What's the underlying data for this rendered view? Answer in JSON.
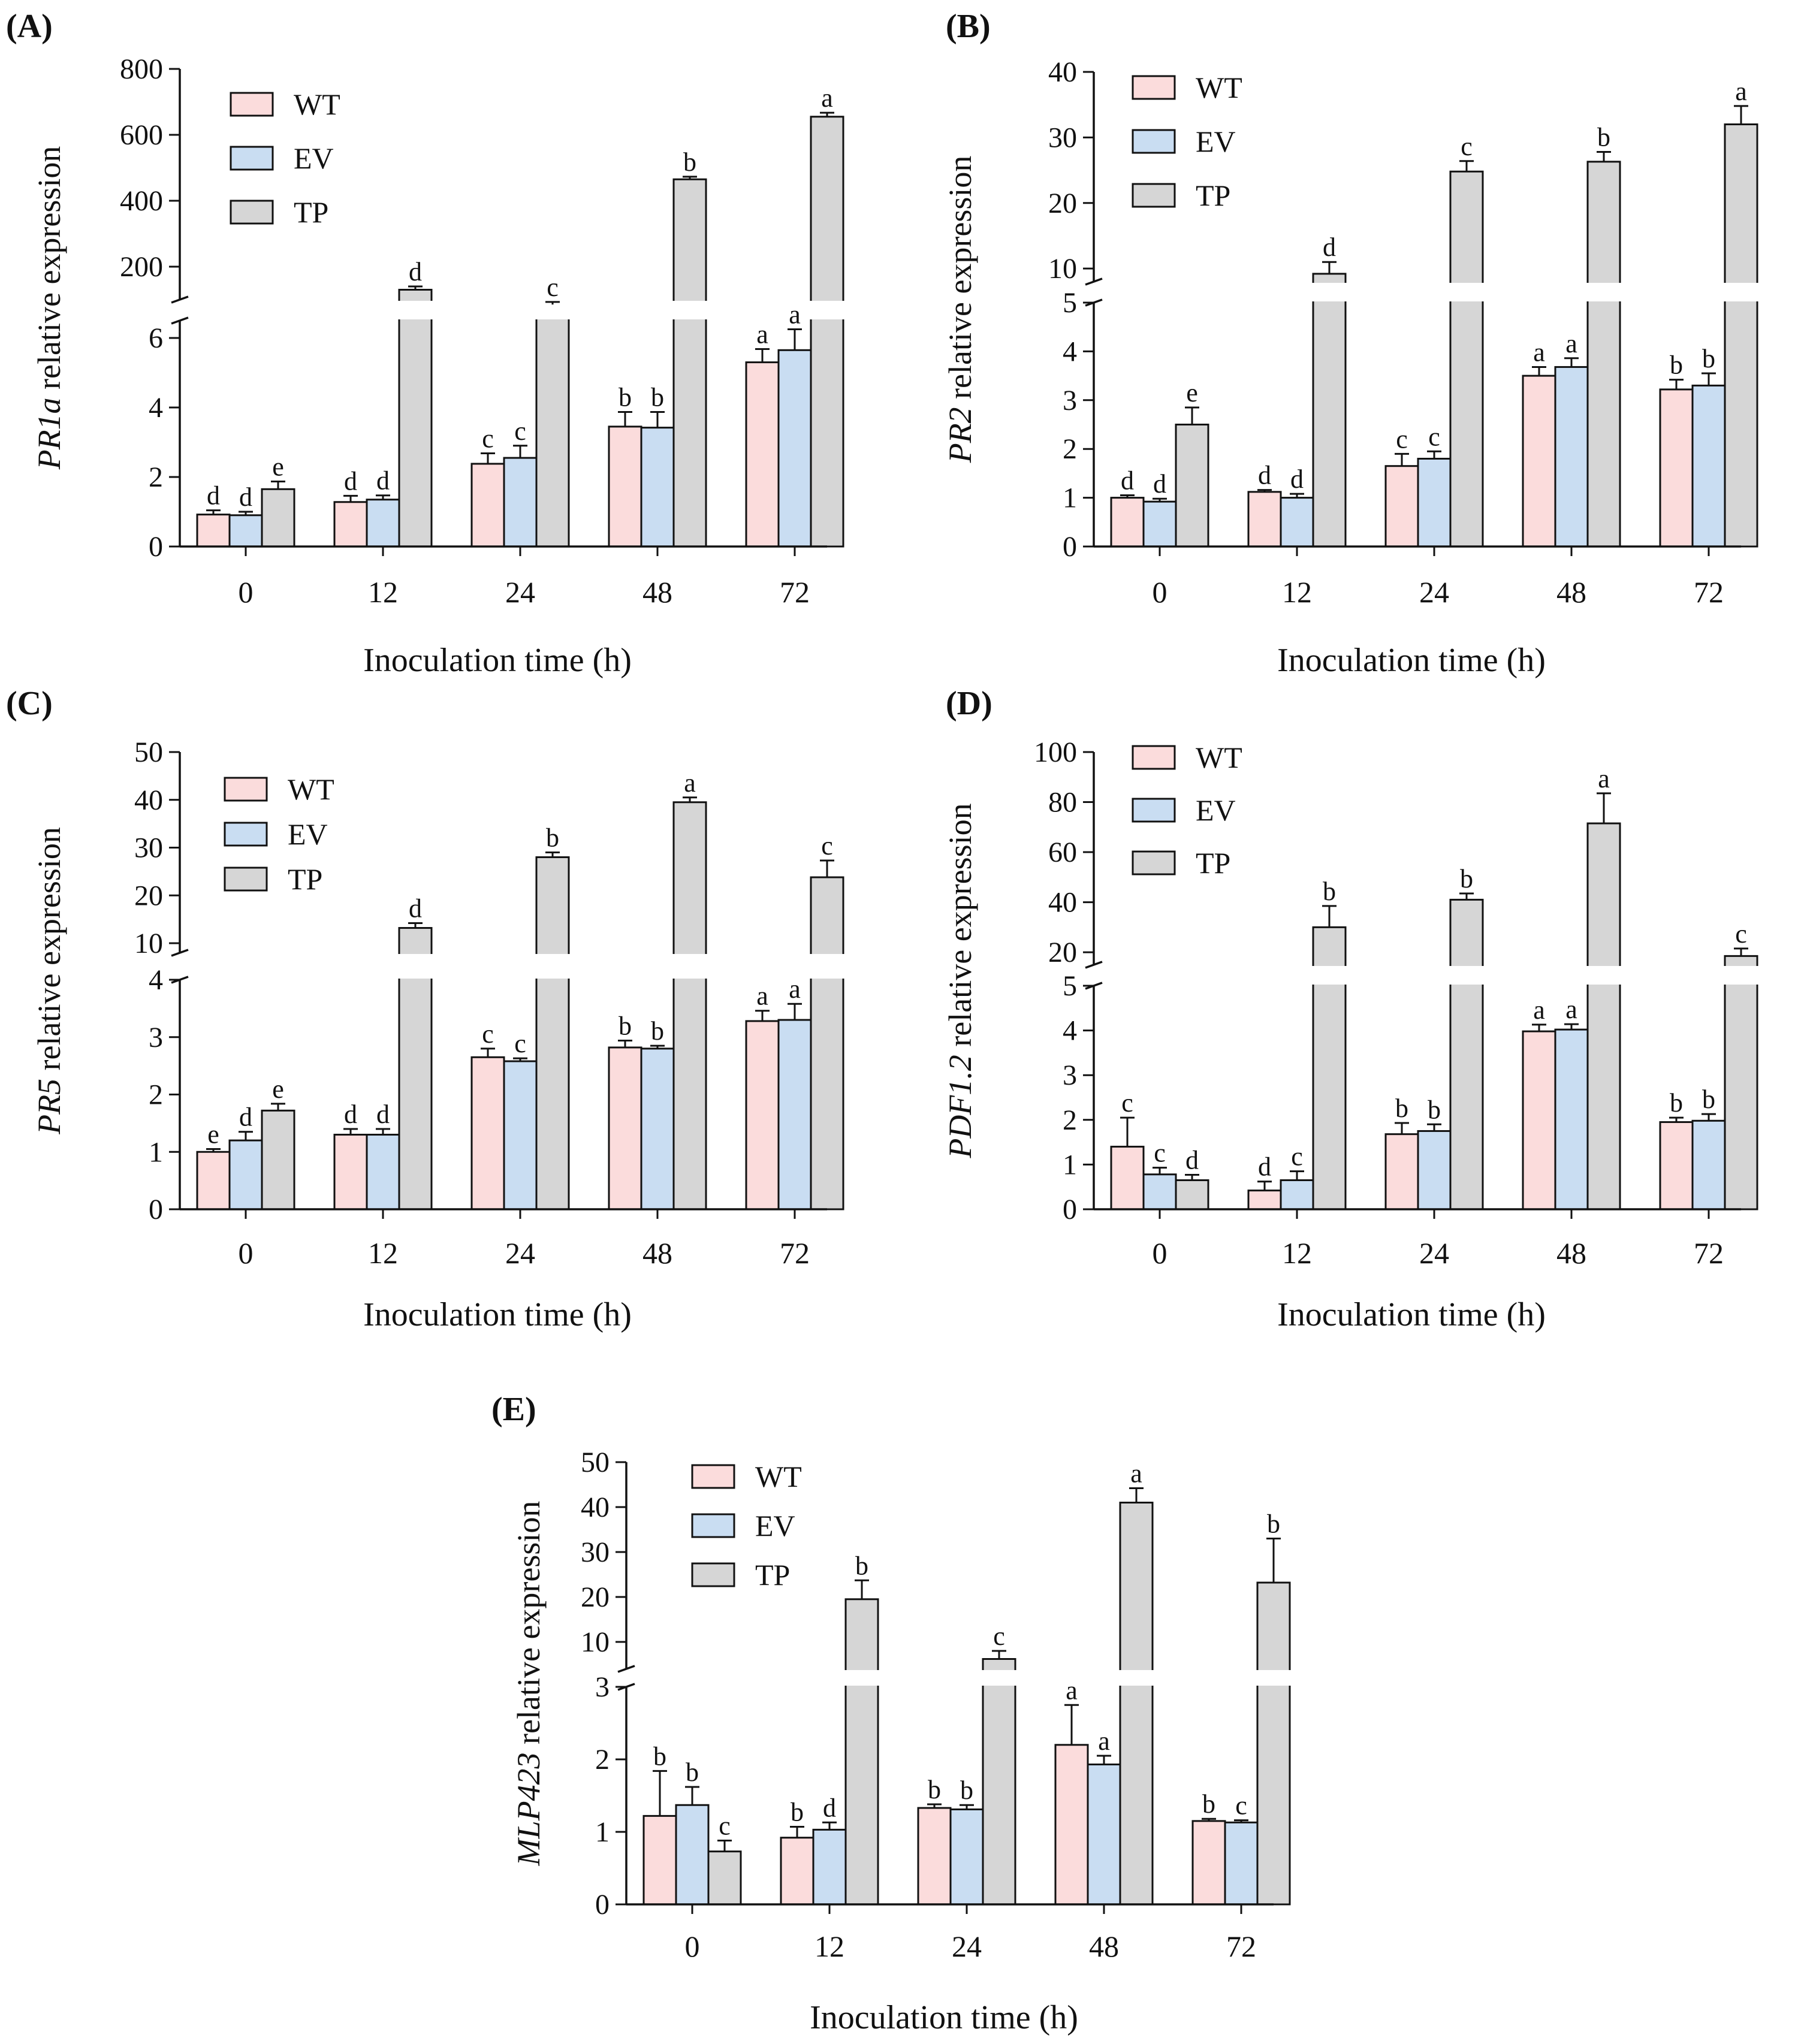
{
  "colors": {
    "WT": "#fbdcdc",
    "EV": "#c9ddf2",
    "TP": "#d6d6d6",
    "stroke": "#111111"
  },
  "chart_data": [
    {
      "type": "bar",
      "panel": "(A)",
      "ylabel_italic": "PR1a",
      "ylabel_rest": " relative expression",
      "xlabel": "Inoculation time (h)",
      "categories": [
        "0",
        "12",
        "24",
        "48",
        "72"
      ],
      "legend": [
        "WT",
        "EV",
        "TP"
      ],
      "lower": {
        "ylim": [
          0,
          6.5
        ],
        "ticks": [
          0,
          2,
          4,
          6
        ]
      },
      "upper": {
        "ylim": [
          100,
          800
        ],
        "ticks": [
          200,
          400,
          600,
          800
        ]
      },
      "series": [
        {
          "name": "WT",
          "values": [
            0.92,
            1.28,
            2.38,
            3.45,
            5.3
          ],
          "errors": [
            0.12,
            0.18,
            0.3,
            0.42,
            0.38
          ],
          "letters": [
            "d",
            "d",
            "c",
            "b",
            "a"
          ]
        },
        {
          "name": "EV",
          "values": [
            0.9,
            1.35,
            2.55,
            3.42,
            5.65
          ],
          "errors": [
            0.1,
            0.12,
            0.35,
            0.45,
            0.6
          ],
          "letters": [
            "d",
            "d",
            "c",
            "b",
            "a"
          ]
        },
        {
          "name": "TP",
          "values": [
            1.65,
            130,
            85,
            465,
            655
          ],
          "errors": [
            0.22,
            10,
            8,
            8,
            12
          ],
          "letters": [
            "e",
            "d",
            "c",
            "b",
            "a"
          ]
        }
      ]
    },
    {
      "type": "bar",
      "panel": "(B)",
      "ylabel_italic": "PR2",
      "ylabel_rest": " relative expression",
      "xlabel": "Inoculation time (h)",
      "categories": [
        "0",
        "12",
        "24",
        "48",
        "72"
      ],
      "legend": [
        "WT",
        "EV",
        "TP"
      ],
      "lower": {
        "ylim": [
          0,
          5
        ],
        "ticks": [
          0,
          1,
          2,
          3,
          4,
          5
        ]
      },
      "upper": {
        "ylim": [
          8,
          40
        ],
        "ticks": [
          10,
          20,
          30,
          40
        ]
      },
      "series": [
        {
          "name": "WT",
          "values": [
            1.0,
            1.12,
            1.65,
            3.5,
            3.22
          ],
          "errors": [
            0.05,
            0.04,
            0.25,
            0.18,
            0.2
          ],
          "letters": [
            "d",
            "d",
            "c",
            "a",
            "b"
          ]
        },
        {
          "name": "EV",
          "values": [
            0.92,
            1.0,
            1.8,
            3.68,
            3.3
          ],
          "errors": [
            0.06,
            0.08,
            0.15,
            0.18,
            0.25
          ],
          "letters": [
            "d",
            "d",
            "c",
            "a",
            "b"
          ]
        },
        {
          "name": "TP",
          "values": [
            2.5,
            9.2,
            24.8,
            26.3,
            32
          ],
          "errors": [
            0.35,
            1.8,
            1.6,
            1.5,
            2.8
          ],
          "letters": [
            "e",
            "d",
            "c",
            "b",
            "a"
          ]
        }
      ]
    },
    {
      "type": "bar",
      "panel": "(C)",
      "ylabel_italic": "PR5",
      "ylabel_rest": " relative expression",
      "xlabel": "Inoculation time (h)",
      "categories": [
        "0",
        "12",
        "24",
        "48",
        "72"
      ],
      "legend": [
        "WT",
        "EV",
        "TP"
      ],
      "lower": {
        "ylim": [
          0,
          4
        ],
        "ticks": [
          0,
          1,
          2,
          3,
          4
        ]
      },
      "upper": {
        "ylim": [
          8,
          50
        ],
        "ticks": [
          10,
          20,
          30,
          40,
          50
        ]
      },
      "series": [
        {
          "name": "WT",
          "values": [
            1.0,
            1.3,
            2.65,
            2.82,
            3.28
          ],
          "errors": [
            0.05,
            0.1,
            0.15,
            0.12,
            0.18
          ],
          "letters": [
            "e",
            "d",
            "c",
            "b",
            "a"
          ]
        },
        {
          "name": "EV",
          "values": [
            1.2,
            1.3,
            2.58,
            2.8,
            3.3
          ],
          "errors": [
            0.15,
            0.1,
            0.05,
            0.05,
            0.28
          ],
          "letters": [
            "d",
            "d",
            "c",
            "b",
            "a"
          ]
        },
        {
          "name": "TP",
          "values": [
            1.72,
            13.2,
            28,
            39.5,
            23.8
          ],
          "errors": [
            0.12,
            1,
            1,
            1,
            3.5
          ],
          "letters": [
            "e",
            "d",
            "b",
            "a",
            "c"
          ]
        }
      ]
    },
    {
      "type": "bar",
      "panel": "(D)",
      "ylabel_italic": "PDF1.2",
      "ylabel_rest": " relative expression",
      "xlabel": "Inoculation time (h)",
      "categories": [
        "0",
        "12",
        "24",
        "48",
        "72"
      ],
      "legend": [
        "WT",
        "EV",
        "TP"
      ],
      "lower": {
        "ylim": [
          0,
          5
        ],
        "ticks": [
          0,
          1,
          2,
          3,
          4,
          5
        ]
      },
      "upper": {
        "ylim": [
          15,
          100
        ],
        "ticks": [
          20,
          40,
          60,
          80,
          100
        ]
      },
      "series": [
        {
          "name": "WT",
          "values": [
            1.4,
            0.42,
            1.68,
            3.98,
            1.95
          ],
          "errors": [
            0.65,
            0.2,
            0.25,
            0.15,
            0.1
          ],
          "letters": [
            "c",
            "d",
            "b",
            "a",
            "b"
          ]
        },
        {
          "name": "EV",
          "values": [
            0.78,
            0.65,
            1.75,
            4.02,
            1.98
          ],
          "errors": [
            0.15,
            0.2,
            0.15,
            0.12,
            0.15
          ],
          "letters": [
            "c",
            "c",
            "b",
            "a",
            "b"
          ]
        },
        {
          "name": "TP",
          "values": [
            0.65,
            30,
            41,
            71.5,
            18.5
          ],
          "errors": [
            0.12,
            8.5,
            2.5,
            12,
            3
          ],
          "letters": [
            "d",
            "b",
            "b",
            "a",
            "c"
          ]
        }
      ]
    },
    {
      "type": "bar",
      "panel": "(E)",
      "ylabel_italic": "MLP423",
      "ylabel_rest": " relative expression",
      "xlabel": "Inoculation time (h)",
      "categories": [
        "0",
        "12",
        "24",
        "48",
        "72"
      ],
      "legend": [
        "WT",
        "EV",
        "TP"
      ],
      "lower": {
        "ylim": [
          0,
          3
        ],
        "ticks": [
          0,
          1,
          2,
          3
        ]
      },
      "upper": {
        "ylim": [
          4,
          50
        ],
        "ticks": [
          10,
          20,
          30,
          40,
          50
        ]
      },
      "series": [
        {
          "name": "WT",
          "values": [
            1.22,
            0.92,
            1.33,
            2.2,
            1.15
          ],
          "errors": [
            0.62,
            0.15,
            0.05,
            0.55,
            0.03
          ],
          "letters": [
            "b",
            "b",
            "b",
            "a",
            "b"
          ]
        },
        {
          "name": "EV",
          "values": [
            1.37,
            1.03,
            1.31,
            1.93,
            1.13
          ],
          "errors": [
            0.25,
            0.1,
            0.06,
            0.12,
            0.03
          ],
          "letters": [
            "b",
            "d",
            "b",
            "a",
            "c"
          ]
        },
        {
          "name": "TP",
          "values": [
            0.73,
            19.5,
            6.2,
            41,
            23.2
          ],
          "errors": [
            0.15,
            4.2,
            1.8,
            3.2,
            9.8
          ],
          "letters": [
            "c",
            "b",
            "c",
            "a",
            "b"
          ]
        }
      ]
    }
  ]
}
